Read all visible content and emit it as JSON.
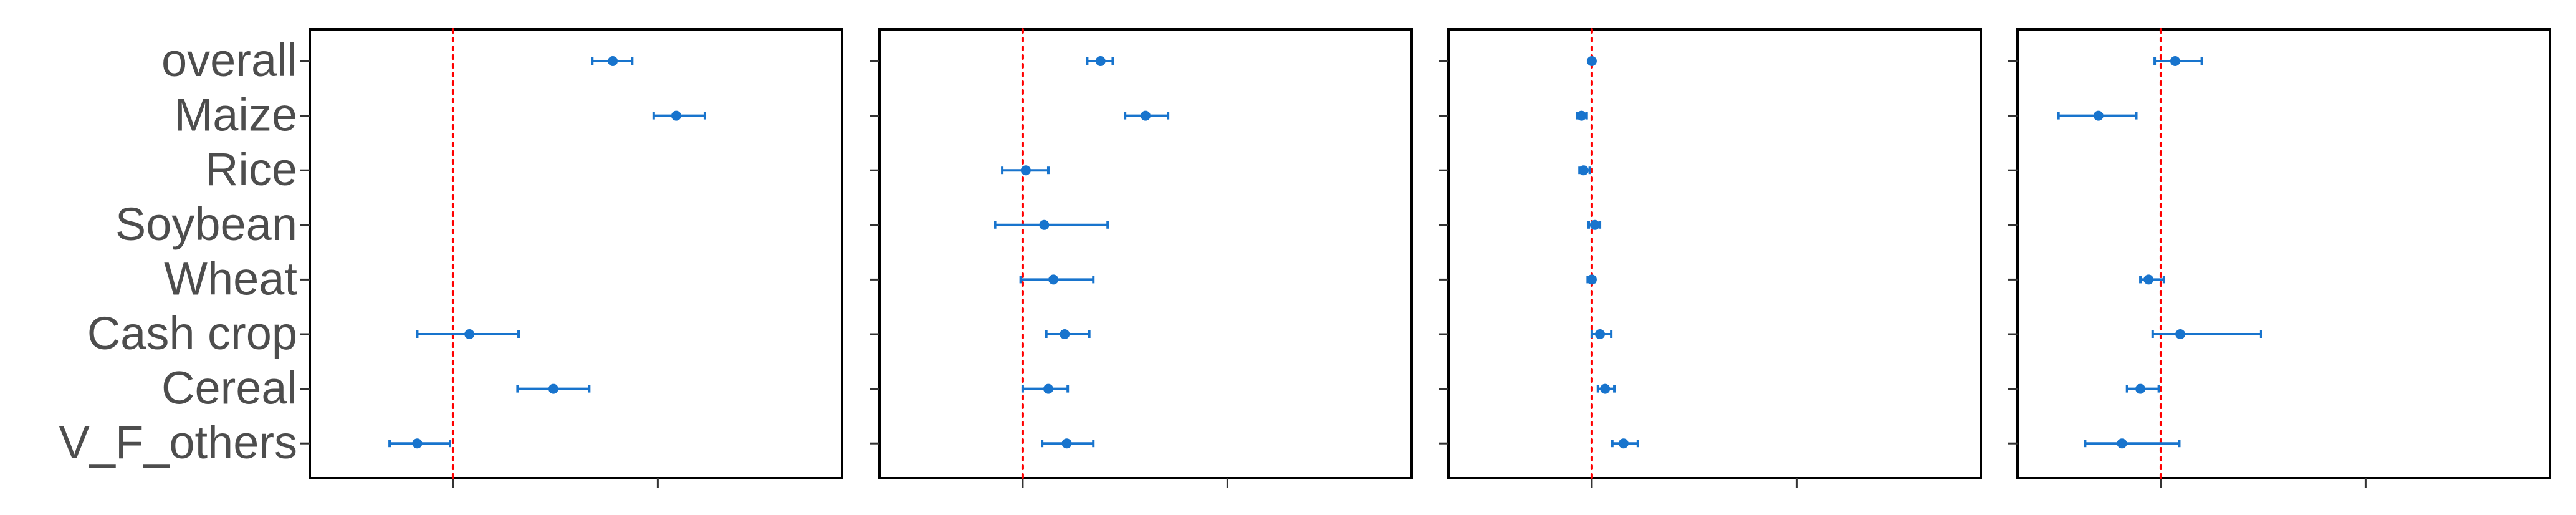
{
  "chart_data": {
    "type": "forest",
    "categories": [
      "overall",
      "Maize",
      "Rice",
      "Soybean",
      "Wheat",
      "Cash crop",
      "Cereal",
      "V_F_others"
    ],
    "reference_line": {
      "value": 0,
      "color": "#FF0000",
      "style": "dotted"
    },
    "point_color": "#1874CD",
    "grid": false,
    "panels": [
      {
        "xlim": [
          -1.4,
          3.8
        ],
        "estimates": [
          1.56,
          2.18,
          null,
          null,
          null,
          0.16,
          0.98,
          -0.35
        ],
        "lower": [
          1.36,
          1.96,
          null,
          null,
          null,
          -0.35,
          0.63,
          -0.62
        ],
        "upper": [
          1.75,
          2.46,
          null,
          null,
          null,
          0.64,
          1.33,
          -0.03
        ]
      },
      {
        "xlim": [
          -1.4,
          3.8
        ],
        "estimates": [
          0.76,
          1.2,
          0.03,
          0.21,
          0.3,
          0.41,
          0.25,
          0.43
        ],
        "lower": [
          0.63,
          1.0,
          -0.2,
          -0.27,
          -0.02,
          0.23,
          0.0,
          0.19
        ],
        "upper": [
          0.88,
          1.42,
          0.25,
          0.83,
          0.69,
          0.65,
          0.44,
          0.69
        ]
      },
      {
        "xlim": [
          -1.4,
          3.8
        ],
        "estimates": [
          0.0,
          -0.1,
          -0.08,
          0.03,
          0.0,
          0.08,
          0.13,
          0.31
        ],
        "lower": [
          -0.02,
          -0.14,
          -0.12,
          -0.03,
          -0.04,
          0.0,
          0.06,
          0.2
        ],
        "upper": [
          0.02,
          -0.05,
          -0.02,
          0.08,
          0.03,
          0.19,
          0.22,
          0.45
        ]
      },
      {
        "xlim": [
          -1.4,
          3.8
        ],
        "estimates": [
          0.14,
          -0.61,
          null,
          null,
          -0.12,
          0.19,
          -0.2,
          -0.38
        ],
        "lower": [
          -0.06,
          -1.0,
          null,
          null,
          -0.2,
          -0.08,
          -0.33,
          -0.74
        ],
        "upper": [
          0.4,
          -0.24,
          null,
          null,
          0.03,
          0.98,
          -0.02,
          0.18
        ]
      }
    ],
    "x_ticks": [
      0,
      2
    ]
  }
}
